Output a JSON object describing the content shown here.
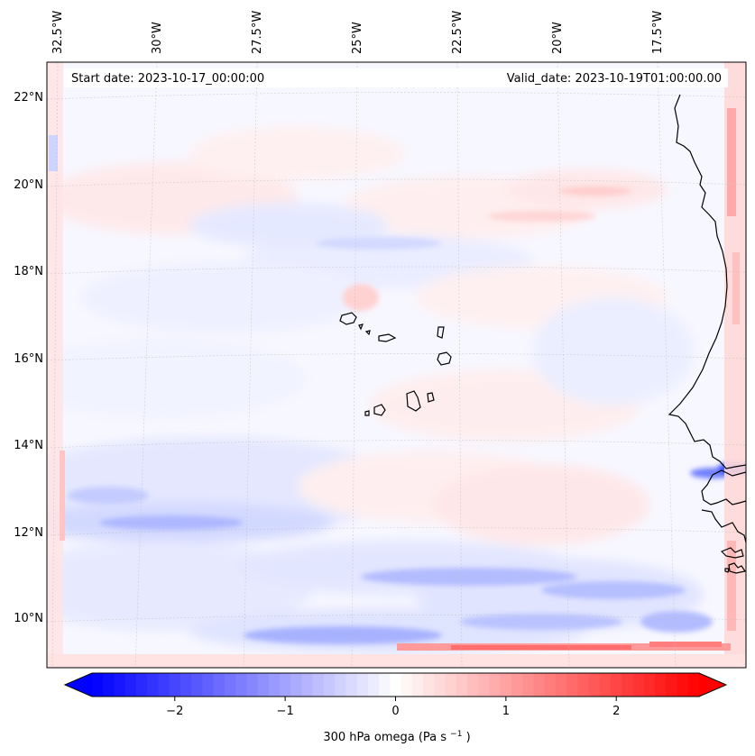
{
  "map": {
    "start_date_label": "Start date: 2023-10-17_00:00:00",
    "valid_date_label": "Valid_date: 2023-10-19T01:00:00.00",
    "longitude_labels": [
      "32.5°W",
      "30°W",
      "27.5°W",
      "25°W",
      "22.5°W",
      "20°W",
      "17.5°W"
    ],
    "latitude_labels": [
      "22°N",
      "20°N",
      "18°N",
      "16°N",
      "14°N",
      "12°N",
      "10°N"
    ]
  },
  "colorbar": {
    "label_prefix": "300 hPa omega (Pa s",
    "label_exponent": "−1",
    "label_suffix": ")",
    "ticks": [
      {
        "value": -2,
        "label": "−2"
      },
      {
        "value": -1,
        "label": "−1"
      },
      {
        "value": 0,
        "label": "0"
      },
      {
        "value": 1,
        "label": "1"
      },
      {
        "value": 2,
        "label": "2"
      }
    ],
    "vmin": -2.75,
    "vmax": 2.75,
    "levels": 55,
    "colormap": "bwr",
    "colors": {
      "min": "#0000ff",
      "mid": "#ffffff",
      "max": "#ff0000"
    }
  }
}
